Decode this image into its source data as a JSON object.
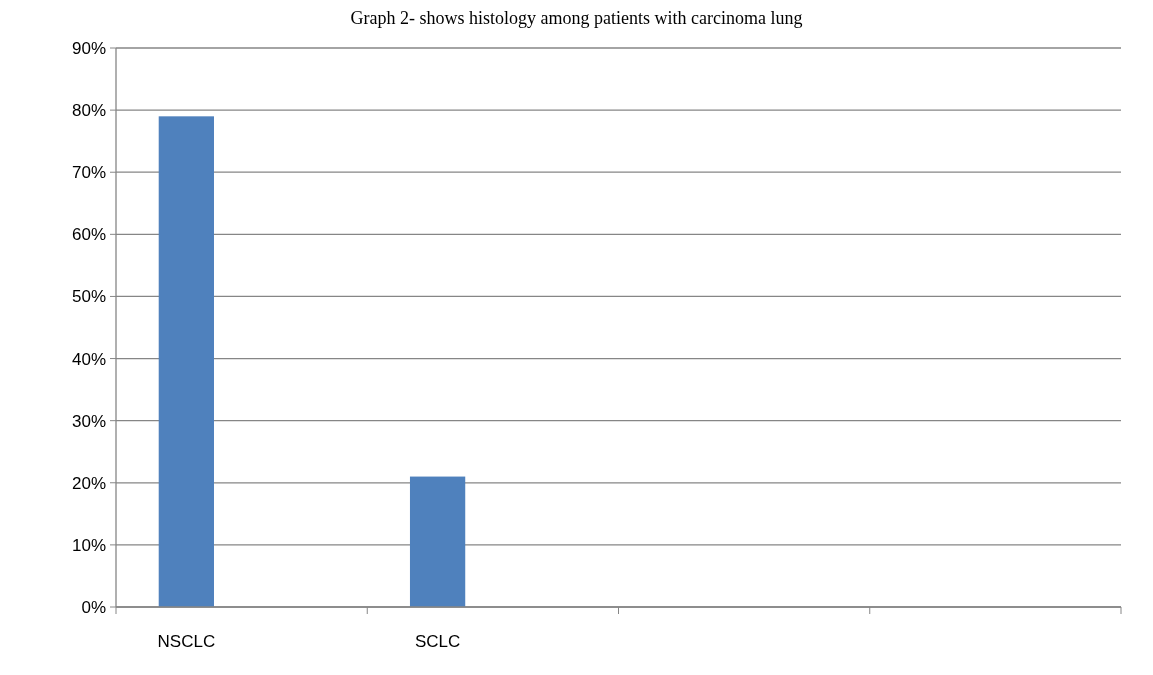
{
  "chart_data": {
    "type": "bar",
    "title": "Graph 2- shows histology among patients with carcinoma lung",
    "categories": [
      "NSCLC",
      "SCLC",
      null,
      null
    ],
    "values": [
      79,
      21,
      null,
      null
    ],
    "color": "#4f81bd",
    "ylim": [
      0,
      90
    ],
    "yticks": [
      {
        "value": 0,
        "label": "0%"
      },
      {
        "value": 10,
        "label": "10%"
      },
      {
        "value": 20,
        "label": "20%"
      },
      {
        "value": 30,
        "label": "30%"
      },
      {
        "value": 40,
        "label": "40%"
      },
      {
        "value": 50,
        "label": "50%"
      },
      {
        "value": 60,
        "label": "60%"
      },
      {
        "value": 70,
        "label": "70%"
      },
      {
        "value": 80,
        "label": "80%"
      },
      {
        "value": 90,
        "label": "90%"
      }
    ],
    "grid": "y"
  }
}
